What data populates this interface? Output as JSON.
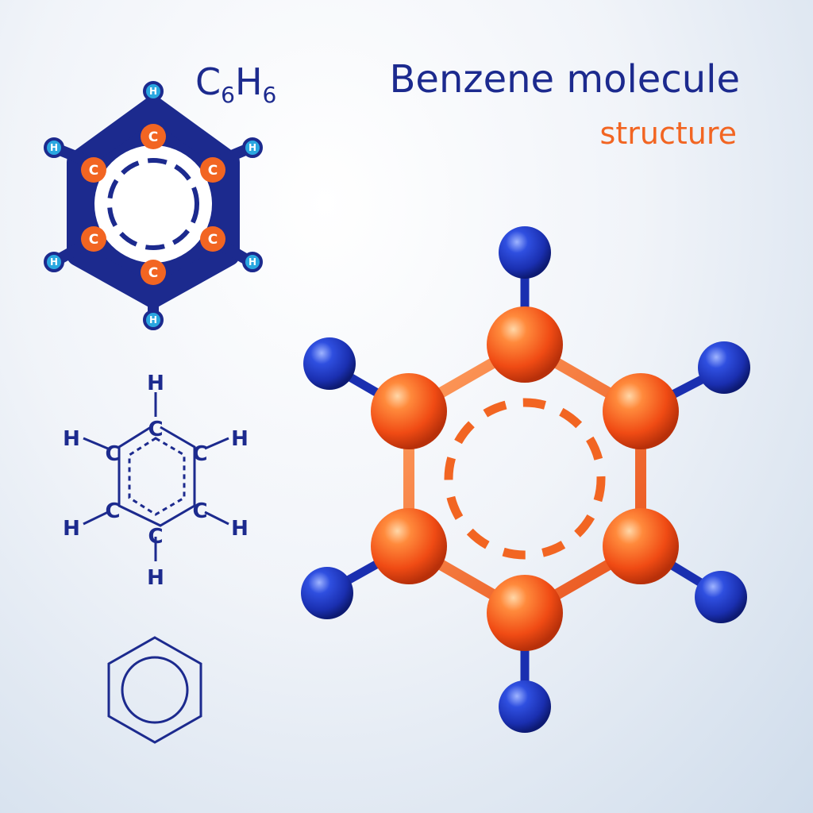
{
  "title": "Benzene molecule",
  "subtitle": "structure",
  "formula": {
    "main1": "C",
    "sub1": "6",
    "main2": "H",
    "sub2": "6"
  },
  "atoms": {
    "carbon": "C",
    "hydrogen": "H"
  },
  "colors": {
    "navy": "#1c2a8e",
    "orange": "#f26522",
    "cyan": "#2aa7e0"
  }
}
